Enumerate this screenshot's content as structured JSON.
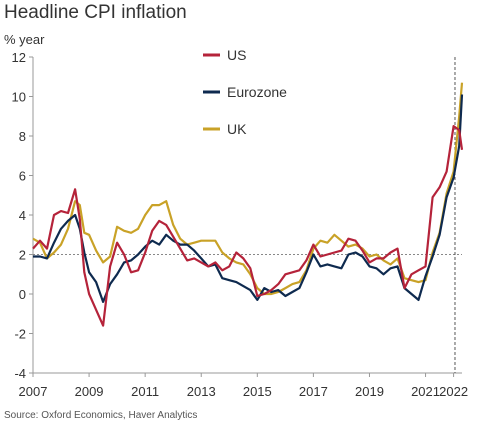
{
  "title": "Headline CPI inflation",
  "unit_label": "% year",
  "source": "Source: Oxford Economics, Haver Analytics",
  "chart_data": {
    "type": "line",
    "title": "Headline CPI inflation",
    "ylabel": "% year",
    "xlabel": "",
    "xlim": [
      2007,
      2022.3
    ],
    "ylim": [
      -4,
      12
    ],
    "y_ticks": [
      -4,
      -2,
      0,
      2,
      4,
      6,
      8,
      10,
      12
    ],
    "x_ticks": [
      "2007",
      "2009",
      "2011",
      "2013",
      "2015",
      "2017",
      "2019",
      "2021",
      "2022"
    ],
    "x_tick_values": [
      2007,
      2009,
      2011,
      2013,
      2015,
      2017,
      2019,
      2021,
      2022
    ],
    "reference_line_y": 2,
    "vertical_marker_x": 2022.05,
    "legend_position": "top-center",
    "grid": false,
    "series": [
      {
        "name": "US",
        "color": "#b5233a",
        "points": [
          [
            2007.0,
            2.3
          ],
          [
            2007.25,
            2.7
          ],
          [
            2007.5,
            2.3
          ],
          [
            2007.75,
            4.0
          ],
          [
            2008.0,
            4.2
          ],
          [
            2008.25,
            4.1
          ],
          [
            2008.5,
            5.3
          ],
          [
            2008.67,
            3.8
          ],
          [
            2008.83,
            1.1
          ],
          [
            2009.0,
            0.0
          ],
          [
            2009.25,
            -0.8
          ],
          [
            2009.5,
            -1.6
          ],
          [
            2009.75,
            1.4
          ],
          [
            2010.0,
            2.6
          ],
          [
            2010.25,
            2.0
          ],
          [
            2010.5,
            1.1
          ],
          [
            2010.75,
            1.2
          ],
          [
            2011.0,
            2.1
          ],
          [
            2011.25,
            3.2
          ],
          [
            2011.5,
            3.7
          ],
          [
            2011.75,
            3.5
          ],
          [
            2012.0,
            2.9
          ],
          [
            2012.25,
            2.3
          ],
          [
            2012.5,
            1.7
          ],
          [
            2012.75,
            1.8
          ],
          [
            2013.0,
            1.6
          ],
          [
            2013.25,
            1.4
          ],
          [
            2013.5,
            1.6
          ],
          [
            2013.75,
            1.2
          ],
          [
            2014.0,
            1.4
          ],
          [
            2014.25,
            2.1
          ],
          [
            2014.5,
            1.8
          ],
          [
            2014.75,
            1.3
          ],
          [
            2015.0,
            -0.1
          ],
          [
            2015.25,
            0.0
          ],
          [
            2015.5,
            0.2
          ],
          [
            2015.75,
            0.5
          ],
          [
            2016.0,
            1.0
          ],
          [
            2016.25,
            1.1
          ],
          [
            2016.5,
            1.2
          ],
          [
            2016.75,
            1.7
          ],
          [
            2017.0,
            2.5
          ],
          [
            2017.25,
            1.9
          ],
          [
            2017.5,
            2.0
          ],
          [
            2017.75,
            2.1
          ],
          [
            2018.0,
            2.2
          ],
          [
            2018.25,
            2.8
          ],
          [
            2018.5,
            2.7
          ],
          [
            2018.75,
            2.2
          ],
          [
            2019.0,
            1.6
          ],
          [
            2019.25,
            1.8
          ],
          [
            2019.5,
            1.8
          ],
          [
            2019.75,
            2.1
          ],
          [
            2020.0,
            2.3
          ],
          [
            2020.25,
            0.3
          ],
          [
            2020.5,
            1.0
          ],
          [
            2020.75,
            1.2
          ],
          [
            2021.0,
            1.4
          ],
          [
            2021.25,
            4.9
          ],
          [
            2021.5,
            5.4
          ],
          [
            2021.75,
            6.2
          ],
          [
            2022.0,
            8.5
          ],
          [
            2022.2,
            8.3
          ],
          [
            2022.3,
            7.3
          ]
        ]
      },
      {
        "name": "Eurozone",
        "color": "#0e2a4f",
        "points": [
          [
            2007.0,
            1.9
          ],
          [
            2007.25,
            1.9
          ],
          [
            2007.5,
            1.8
          ],
          [
            2007.75,
            2.6
          ],
          [
            2008.0,
            3.3
          ],
          [
            2008.25,
            3.7
          ],
          [
            2008.5,
            4.0
          ],
          [
            2008.67,
            3.3
          ],
          [
            2008.83,
            2.1
          ],
          [
            2009.0,
            1.1
          ],
          [
            2009.25,
            0.6
          ],
          [
            2009.5,
            -0.4
          ],
          [
            2009.75,
            0.5
          ],
          [
            2010.0,
            1.0
          ],
          [
            2010.25,
            1.6
          ],
          [
            2010.5,
            1.7
          ],
          [
            2010.75,
            2.0
          ],
          [
            2011.0,
            2.4
          ],
          [
            2011.25,
            2.7
          ],
          [
            2011.5,
            2.5
          ],
          [
            2011.75,
            3.0
          ],
          [
            2012.0,
            2.7
          ],
          [
            2012.25,
            2.5
          ],
          [
            2012.5,
            2.5
          ],
          [
            2012.75,
            2.2
          ],
          [
            2013.0,
            1.8
          ],
          [
            2013.25,
            1.4
          ],
          [
            2013.5,
            1.5
          ],
          [
            2013.75,
            0.8
          ],
          [
            2014.0,
            0.7
          ],
          [
            2014.25,
            0.6
          ],
          [
            2014.5,
            0.4
          ],
          [
            2014.75,
            0.2
          ],
          [
            2015.0,
            -0.3
          ],
          [
            2015.25,
            0.3
          ],
          [
            2015.5,
            0.1
          ],
          [
            2015.75,
            0.2
          ],
          [
            2016.0,
            -0.1
          ],
          [
            2016.25,
            0.1
          ],
          [
            2016.5,
            0.3
          ],
          [
            2016.75,
            1.1
          ],
          [
            2017.0,
            2.0
          ],
          [
            2017.25,
            1.4
          ],
          [
            2017.5,
            1.5
          ],
          [
            2017.75,
            1.4
          ],
          [
            2018.0,
            1.3
          ],
          [
            2018.25,
            2.0
          ],
          [
            2018.5,
            2.1
          ],
          [
            2018.75,
            1.9
          ],
          [
            2019.0,
            1.4
          ],
          [
            2019.25,
            1.3
          ],
          [
            2019.5,
            1.0
          ],
          [
            2019.75,
            1.3
          ],
          [
            2020.0,
            1.4
          ],
          [
            2020.25,
            0.3
          ],
          [
            2020.5,
            0.0
          ],
          [
            2020.75,
            -0.3
          ],
          [
            2021.0,
            0.9
          ],
          [
            2021.25,
            1.9
          ],
          [
            2021.5,
            3.0
          ],
          [
            2021.75,
            4.9
          ],
          [
            2022.0,
            5.9
          ],
          [
            2022.2,
            7.5
          ],
          [
            2022.3,
            10.1
          ]
        ]
      },
      {
        "name": "UK",
        "color": "#c9a227",
        "points": [
          [
            2007.0,
            2.8
          ],
          [
            2007.25,
            2.6
          ],
          [
            2007.5,
            1.8
          ],
          [
            2007.75,
            2.1
          ],
          [
            2008.0,
            2.5
          ],
          [
            2008.25,
            3.3
          ],
          [
            2008.5,
            4.7
          ],
          [
            2008.67,
            4.5
          ],
          [
            2008.83,
            3.1
          ],
          [
            2009.0,
            3.0
          ],
          [
            2009.25,
            2.2
          ],
          [
            2009.5,
            1.6
          ],
          [
            2009.75,
            1.9
          ],
          [
            2010.0,
            3.4
          ],
          [
            2010.25,
            3.2
          ],
          [
            2010.5,
            3.1
          ],
          [
            2010.75,
            3.3
          ],
          [
            2011.0,
            4.0
          ],
          [
            2011.25,
            4.5
          ],
          [
            2011.5,
            4.5
          ],
          [
            2011.75,
            4.7
          ],
          [
            2012.0,
            3.5
          ],
          [
            2012.25,
            2.8
          ],
          [
            2012.5,
            2.5
          ],
          [
            2012.75,
            2.6
          ],
          [
            2013.0,
            2.7
          ],
          [
            2013.25,
            2.7
          ],
          [
            2013.5,
            2.7
          ],
          [
            2013.75,
            2.1
          ],
          [
            2014.0,
            1.8
          ],
          [
            2014.25,
            1.6
          ],
          [
            2014.5,
            1.5
          ],
          [
            2014.75,
            1.0
          ],
          [
            2015.0,
            0.3
          ],
          [
            2015.25,
            0.0
          ],
          [
            2015.5,
            0.0
          ],
          [
            2015.75,
            0.1
          ],
          [
            2016.0,
            0.3
          ],
          [
            2016.25,
            0.5
          ],
          [
            2016.5,
            0.6
          ],
          [
            2016.75,
            1.2
          ],
          [
            2017.0,
            2.3
          ],
          [
            2017.25,
            2.7
          ],
          [
            2017.5,
            2.6
          ],
          [
            2017.75,
            3.0
          ],
          [
            2018.0,
            2.7
          ],
          [
            2018.25,
            2.4
          ],
          [
            2018.5,
            2.5
          ],
          [
            2018.75,
            2.3
          ],
          [
            2019.0,
            1.9
          ],
          [
            2019.25,
            2.0
          ],
          [
            2019.5,
            1.7
          ],
          [
            2019.75,
            1.5
          ],
          [
            2020.0,
            1.8
          ],
          [
            2020.25,
            0.8
          ],
          [
            2020.5,
            0.7
          ],
          [
            2020.75,
            0.6
          ],
          [
            2021.0,
            0.7
          ],
          [
            2021.25,
            2.1
          ],
          [
            2021.5,
            3.1
          ],
          [
            2021.75,
            5.1
          ],
          [
            2022.0,
            6.2
          ],
          [
            2022.2,
            9.0
          ],
          [
            2022.3,
            10.7
          ]
        ]
      }
    ]
  }
}
